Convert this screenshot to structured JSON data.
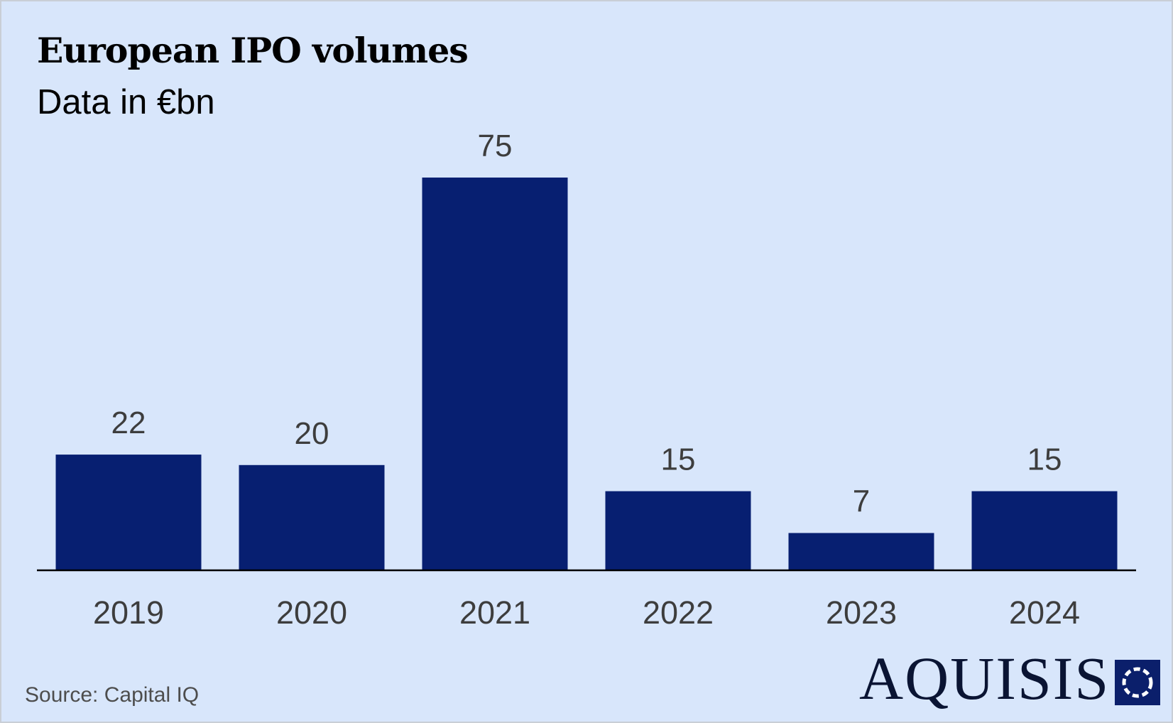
{
  "header": {
    "title": "European IPO volumes",
    "subtitle": "Data in €bn"
  },
  "footer": {
    "source": "Source: Capital IQ",
    "brand": "AQUISIS"
  },
  "colors": {
    "background": "#d8e6fb",
    "bar": "#071f71",
    "axis": "#000000",
    "label": "#3d3d3d"
  },
  "chart_data": {
    "type": "bar",
    "title": "European IPO volumes",
    "subtitle": "Data in €bn",
    "categories": [
      "2019",
      "2020",
      "2021",
      "2022",
      "2023",
      "2024"
    ],
    "values": [
      22,
      20,
      75,
      15,
      7,
      15
    ],
    "data_labels": [
      "22",
      "20",
      "75",
      "15",
      "7",
      "15"
    ],
    "xlabel": "",
    "ylabel": "",
    "ylim": [
      0,
      75
    ],
    "grid": false,
    "legend": "none"
  }
}
